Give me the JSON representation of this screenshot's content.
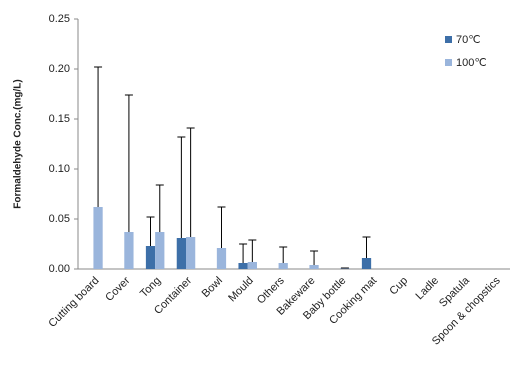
{
  "chart_data": {
    "type": "bar",
    "y_label": "Formaldehyde Conc.(mg/L)",
    "categories": [
      "Cutting board",
      "Cover",
      "Tong",
      "Container",
      "Bowl",
      "Mould",
      "Others",
      "Bakeware",
      "Baby bottle",
      "Cooking mat",
      "Cup",
      "Ladle",
      "Spatula",
      "Spoon & chopstics"
    ],
    "series": [
      {
        "name": "70℃",
        "color": "#3d6fa8",
        "values": [
          null,
          null,
          0.023,
          0.031,
          null,
          0.006,
          null,
          null,
          null,
          0.011,
          null,
          null,
          null,
          null
        ],
        "errors": [
          null,
          null,
          0.029,
          0.101,
          null,
          0.019,
          null,
          null,
          null,
          0.021,
          null,
          null,
          null,
          null
        ]
      },
      {
        "name": "100℃",
        "color": "#9ab5dc",
        "values": [
          0.062,
          0.037,
          0.037,
          0.032,
          0.021,
          0.007,
          0.006,
          0.004,
          0.001,
          null,
          null,
          null,
          null,
          null
        ],
        "errors": [
          0.14,
          0.137,
          0.047,
          0.109,
          0.041,
          0.022,
          0.016,
          0.014,
          0,
          null,
          null,
          null,
          null,
          null
        ]
      }
    ],
    "ylim": [
      0,
      0.25
    ],
    "yticks": [
      {
        "value": 0,
        "label": "0.00"
      },
      {
        "value": 0.05,
        "label": "0.05"
      },
      {
        "value": 0.1,
        "label": "0.10"
      },
      {
        "value": 0.15,
        "label": "0.15"
      },
      {
        "value": 0.2,
        "label": "0.20"
      },
      {
        "value": 0.25,
        "label": "0.25"
      }
    ],
    "legend": "top-right"
  }
}
